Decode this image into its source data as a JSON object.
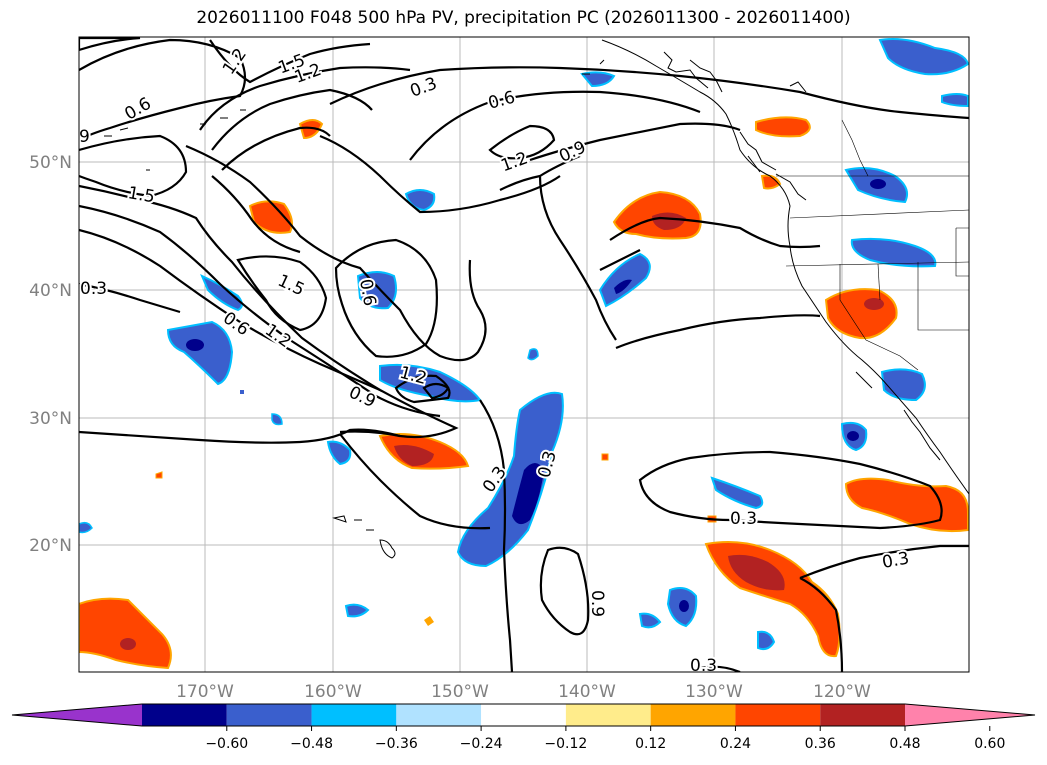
{
  "title": "2026011100 F048 500 hPa PV, precipitation PC (2026011300 - 2026011400)",
  "lat_labels": [
    "50°N",
    "40°N",
    "30°N",
    "20°N"
  ],
  "lon_labels": [
    "170°W",
    "160°W",
    "150°W",
    "140°W",
    "130°W",
    "120°W"
  ],
  "contour_labels": [
    "1.2",
    "1.5",
    "1.2",
    "0.3",
    "0.6",
    "0.6",
    "1.2",
    "0.9",
    "9",
    "1.5",
    "0.3",
    "1.5",
    "0.6",
    "0.6",
    "1.2",
    "1.2",
    "0.9",
    "0.3",
    "0.3",
    "0.3",
    "0.9",
    "0.3",
    "0.3"
  ],
  "colorbar": {
    "ticks": [
      "−0.60",
      "−0.48",
      "−0.36",
      "−0.24",
      "−0.12",
      "0.12",
      "0.24",
      "0.36",
      "0.48",
      "0.60"
    ],
    "colors": [
      "#9933cc",
      "#00008b",
      "#3a5fcd",
      "#00bfff",
      "#b0e2ff",
      "#ffffff",
      "#ffec8b",
      "#ffa500",
      "#ff4500",
      "#b22222",
      "#ff82ab"
    ]
  }
}
